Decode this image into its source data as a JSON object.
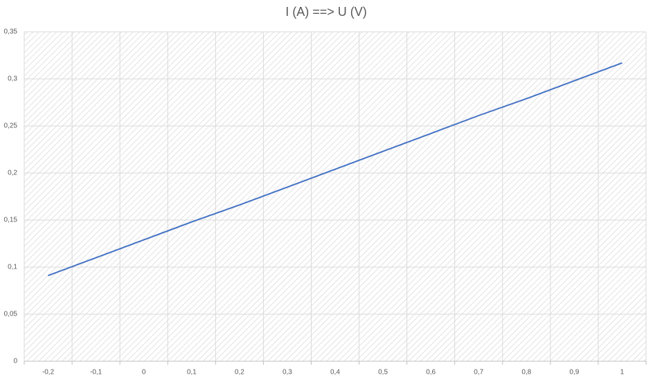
{
  "chart_data": {
    "type": "line",
    "title": "I (A) ==> U (V)",
    "categories": [
      "-0,2",
      "-0,1",
      "0",
      "0,1",
      "0,2",
      "0,3",
      "0,4",
      "0,5",
      "0,6",
      "0,7",
      "0,8",
      "0,9",
      "1"
    ],
    "values": [
      0.091,
      0.11,
      0.129,
      0.148,
      0.166,
      0.185,
      0.204,
      0.223,
      0.242,
      0.261,
      0.279,
      0.298,
      0.317
    ],
    "color": "#4472c4",
    "ylim": [
      0,
      0.35
    ],
    "yticks": [
      0,
      {
        "value": 0.05,
        "label": "0,05"
      },
      {
        "value": 0.1,
        "label": "0,1"
      },
      {
        "value": 0.15,
        "label": "0,15"
      },
      {
        "value": 0.2,
        "label": "0,2"
      },
      {
        "value": 0.25,
        "label": "0,25"
      },
      {
        "value": 0.3,
        "label": "0,3"
      },
      {
        "value": 0.35,
        "label": "0,35"
      }
    ],
    "grid": true
  }
}
